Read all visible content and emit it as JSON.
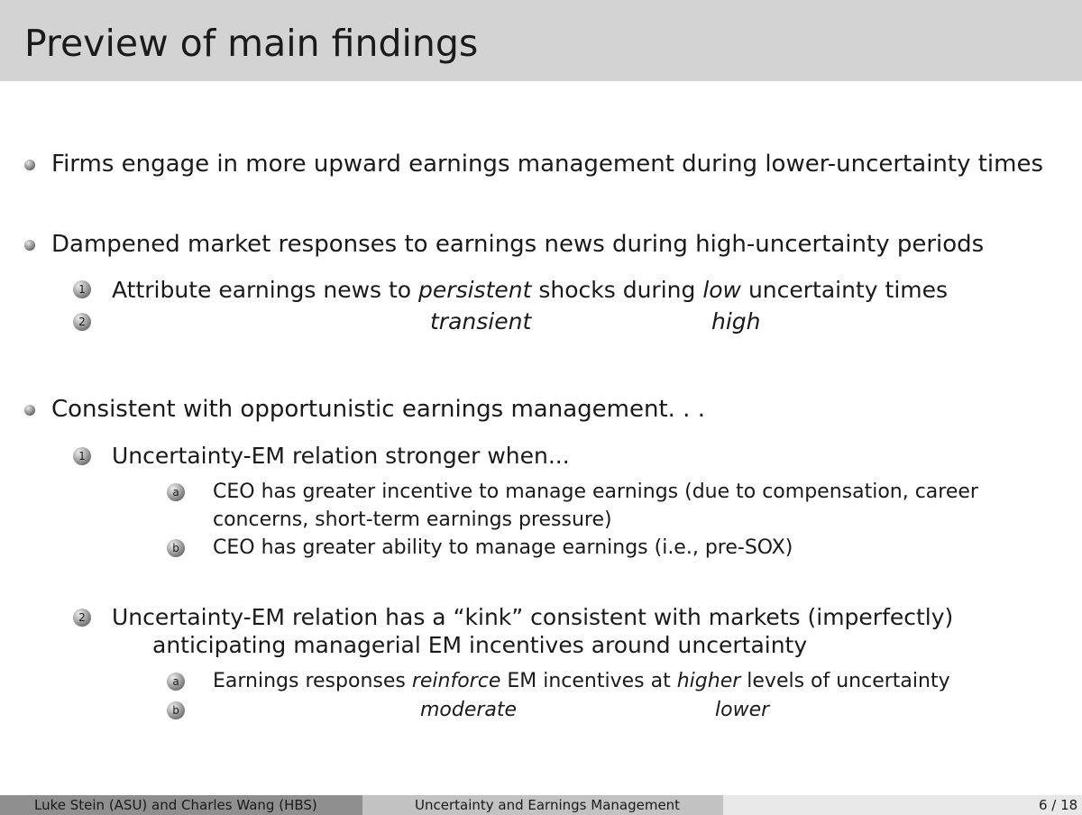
{
  "title": "Preview of main findings",
  "bullets": [
    {
      "text": "Firms engage in more upward earnings management during lower-uncertainty times"
    },
    {
      "text": "Dampened market responses to earnings news during high-uncertainty periods",
      "items": [
        {
          "marker": "1",
          "pre": "Attribute earnings news to ",
          "w1": "persistent",
          "mid": " shocks during ",
          "w2": "low",
          "post": " uncertainty times"
        },
        {
          "marker": "2",
          "w1": "transient",
          "w2": "high"
        }
      ]
    },
    {
      "text": "Consistent with opportunistic earnings management. . .",
      "items": [
        {
          "marker": "1",
          "text": "Uncertainty-EM relation stronger when...",
          "sub": [
            {
              "marker": "a",
              "line1": "CEO has greater incentive to manage earnings (due to compensation, career",
              "line2": "concerns, short-term earnings pressure)"
            },
            {
              "marker": "b",
              "text": "CEO has greater ability to manage earnings (i.e., pre-SOX)"
            }
          ]
        },
        {
          "marker": "2",
          "line1": "Uncertainty-EM relation has a “kink” consistent with markets (imperfectly)",
          "line2": "anticipating managerial EM incentives around uncertainty",
          "sub": [
            {
              "marker": "a",
              "pre": "Earnings responses ",
              "w1": "reinforce",
              "mid": " EM incentives at ",
              "w2": "higher",
              "post": " levels of uncertainty"
            },
            {
              "marker": "b",
              "w1": "moderate",
              "w2": "lower"
            }
          ]
        }
      ]
    }
  ],
  "footer": {
    "authors": "Luke Stein (ASU) and Charles Wang (HBS)",
    "short_title": "Uncertainty and Earnings Management",
    "page": "6 / 18"
  }
}
